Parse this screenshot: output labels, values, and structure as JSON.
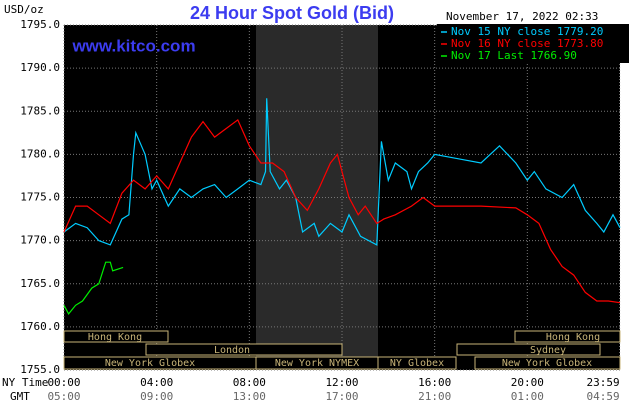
{
  "chart_data": {
    "type": "line",
    "title": "24 Hour Spot Gold (Bid)",
    "website": "www.kitco.com",
    "timestamp": "November 17, 2022 02:33",
    "y_label": "USD/oz",
    "x_axis_labels": [
      "NY Time",
      "GMT"
    ],
    "xlim": [
      0,
      24
    ],
    "xticks": [
      {
        "value": 0,
        "label": "00:00"
      },
      {
        "value": 4,
        "label": "04:00"
      },
      {
        "value": 8,
        "label": "08:00"
      },
      {
        "value": 12,
        "label": "12:00"
      },
      {
        "value": 16,
        "label": "16:00"
      },
      {
        "value": 20,
        "label": "20:00"
      },
      {
        "value": 23.983,
        "label": "23:59"
      }
    ],
    "gmt_tick_labels": [
      "05:00",
      "09:00",
      "13:00",
      "17:00",
      "21:00",
      "01:00",
      "04:59"
    ],
    "ylim": [
      1755,
      1795
    ],
    "yticks": [
      {
        "value": 1755,
        "label": "1755.0"
      },
      {
        "value": 1760,
        "label": "1760.0"
      },
      {
        "value": 1765,
        "label": "1765.0"
      },
      {
        "value": 1770,
        "label": "1770.0"
      },
      {
        "value": 1775,
        "label": "1775.0"
      },
      {
        "value": 1780,
        "label": "1780.0"
      },
      {
        "value": 1785,
        "label": "1785.0"
      },
      {
        "value": 1790,
        "label": "1790.0"
      },
      {
        "value": 1795,
        "label": "1795.0"
      }
    ],
    "grid": true,
    "legend": "top-right",
    "sessions": [
      "Hong Kong",
      "London",
      "New York Globex",
      "New York NYMEX",
      "NY Globex",
      "Sydney",
      "Hong Kong",
      "New York Globex"
    ],
    "series": [
      {
        "name": "Nov 15 NY close 1779.20",
        "color": "#00ccff",
        "x": [
          0,
          0.5,
          1,
          1.5,
          2,
          2.5,
          2.8,
          3,
          3.1,
          3.5,
          3.8,
          4,
          4.5,
          5,
          5.5,
          6,
          6.5,
          7,
          7.5,
          8,
          8.5,
          8.7,
          8.75,
          8.9,
          9.3,
          9.6,
          10,
          10.3,
          10.8,
          11,
          11.5,
          12,
          12.3,
          12.8,
          13.5,
          13.7,
          14,
          14.3,
          14.8,
          15,
          15.3,
          15.7,
          16,
          17,
          18,
          18.8,
          19.5,
          20,
          20.3,
          20.8,
          21.5,
          22,
          22.5,
          23,
          23.3,
          23.7,
          24
        ],
        "values": [
          1771,
          1772,
          1771.5,
          1770,
          1769.5,
          1772.5,
          1773,
          1780,
          1782.5,
          1780,
          1776,
          1777,
          1774,
          1776,
          1775,
          1776,
          1776.5,
          1775,
          1776,
          1777,
          1776.5,
          1778,
          1786.5,
          1778,
          1776,
          1777,
          1775,
          1771,
          1772,
          1770.5,
          1772,
          1771,
          1773,
          1770.5,
          1769.5,
          1781.5,
          1777,
          1779,
          1778,
          1776,
          1778,
          1779,
          1780,
          1779.5,
          1779,
          1781,
          1779,
          1777,
          1778,
          1776,
          1775,
          1776.5,
          1773.5,
          1772,
          1771,
          1773,
          1771.5
        ]
      },
      {
        "name": "Nov 16 NY close 1773.80",
        "color": "#ff0000",
        "x": [
          0,
          0.5,
          1,
          1.5,
          2,
          2.5,
          3,
          3.5,
          4,
          4.5,
          5,
          5.5,
          6,
          6.5,
          7,
          7.5,
          8,
          8.5,
          9,
          9.5,
          10,
          10.5,
          11,
          11.5,
          11.8,
          12,
          12.3,
          12.7,
          13,
          13.5,
          13.8,
          14.3,
          15,
          15.5,
          16,
          17,
          18,
          19.5,
          20,
          20.5,
          21,
          21.5,
          22,
          22.5,
          23,
          23.5,
          24
        ],
        "values": [
          1771,
          1774,
          1774,
          1773,
          1772,
          1775.5,
          1777,
          1776,
          1777.5,
          1776,
          1779,
          1782,
          1783.8,
          1782,
          1783,
          1784,
          1781,
          1779,
          1779,
          1778,
          1775,
          1773.5,
          1776,
          1779,
          1780,
          1778,
          1775,
          1773,
          1774,
          1772,
          1772.5,
          1773,
          1774,
          1775,
          1774,
          1774,
          1774,
          1773.8,
          1773,
          1772,
          1769,
          1767,
          1766,
          1764,
          1763,
          1763,
          1762.8
        ]
      },
      {
        "name": "Nov 17 Last 1766.90",
        "color": "#00ee00",
        "x": [
          0,
          0.2,
          0.5,
          0.8,
          1.2,
          1.5,
          1.8,
          2,
          2.1,
          2.55
        ],
        "values": [
          1762.5,
          1761.5,
          1762.5,
          1763,
          1764.5,
          1765,
          1767.5,
          1767.5,
          1766.5,
          1766.9
        ]
      }
    ]
  }
}
